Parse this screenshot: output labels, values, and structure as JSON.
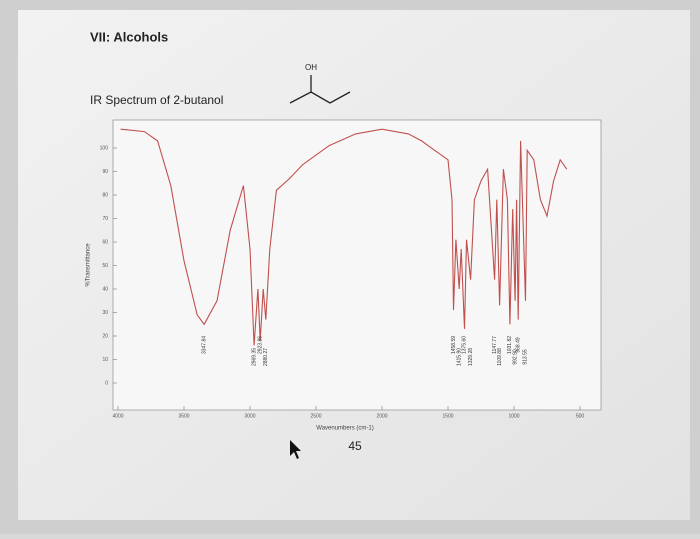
{
  "slide_title": "VII: Alcohols",
  "molecule_label": "OH",
  "page_number": "45",
  "chart_data": {
    "type": "line",
    "title": "IR Spectrum of 2-butanol",
    "x_label": "Wavenumbers (cm-1)",
    "y_label": "%Transmittance",
    "xlim": [
      4000,
      500
    ],
    "ylim": [
      -10,
      110
    ],
    "xticks": [
      4000,
      3500,
      3000,
      2500,
      2000,
      1500,
      1000,
      500
    ],
    "yticks": [
      0,
      10,
      20,
      30,
      40,
      50,
      60,
      70,
      80,
      90,
      100
    ],
    "x": [
      3980,
      3800,
      3700,
      3600,
      3500,
      3400,
      3347,
      3250,
      3150,
      3050,
      3000,
      2969,
      2940,
      2923,
      2900,
      2880,
      2850,
      2800,
      2700,
      2600,
      2400,
      2200,
      2000,
      1800,
      1700,
      1600,
      1500,
      1470,
      1458,
      1440,
      1415,
      1400,
      1375,
      1360,
      1329,
      1300,
      1250,
      1200,
      1147,
      1130,
      1109,
      1080,
      1050,
      1031,
      1010,
      992,
      980,
      968,
      950,
      913,
      900,
      850,
      800,
      750,
      700,
      650,
      600
    ],
    "series": [
      {
        "name": "2-butanol",
        "color": "#c0504d",
        "values": [
          108,
          107,
          103,
          84,
          52,
          29,
          25,
          35,
          65,
          84,
          57,
          16,
          40,
          18,
          40,
          27,
          57,
          82,
          87,
          93,
          101,
          106,
          108,
          106,
          103,
          99,
          95,
          78,
          31,
          61,
          40,
          57,
          23,
          61,
          44,
          78,
          86,
          91,
          44,
          78,
          33,
          91,
          78,
          25,
          74,
          35,
          78,
          27,
          103,
          35,
          99,
          95,
          78,
          71,
          86,
          95,
          91
        ]
      }
    ],
    "annotations": [
      "3347.84",
      "2969.35",
      "2923.86",
      "2880.27",
      "1458.59",
      "1415.90",
      "1375.60",
      "1329.28",
      "1147.77",
      "1109.88",
      "1031.82",
      "992.90",
      "968.49",
      "913.55"
    ]
  }
}
